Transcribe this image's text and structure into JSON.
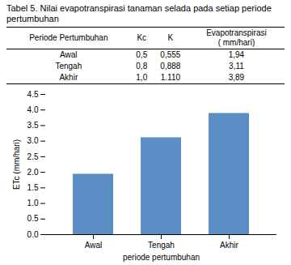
{
  "chart_data": {
    "type": "bar",
    "title": "Tabel 5. Nilai evapotranspirasi tanaman selada pada setiap periode pertumbuhan",
    "table_headers": [
      "Periode Pertumbuhan",
      "Kc",
      "K",
      "Evapotranspirasi\n( mm/hari)"
    ],
    "table_rows": [
      [
        "Awal",
        "0,5",
        "0,555",
        "1,94"
      ],
      [
        "Tengah",
        "0,8",
        "0,888",
        "3,11"
      ],
      [
        "Akhir",
        "1,0",
        "1.110",
        "3,89"
      ]
    ],
    "categories": [
      "Awal",
      "Tengah",
      "Akhir"
    ],
    "values": [
      1.94,
      3.11,
      3.89
    ],
    "color": "#5B8EC5",
    "xlabel": "periode pertumbuhan",
    "ylabel": "ETc (mm/hari)",
    "ylim": [
      0,
      4.5
    ],
    "yticks": [
      {
        "value": 0.0,
        "label": "0.0"
      },
      0.5,
      {
        "value": 1.0,
        "label": "1.0"
      },
      1.5,
      {
        "value": 2.0,
        "label": "2.0"
      },
      2.5,
      {
        "value": 3.0,
        "label": "3.0"
      },
      3.5,
      {
        "value": 4.0,
        "label": "4.0"
      },
      4.5
    ],
    "grid": false
  }
}
